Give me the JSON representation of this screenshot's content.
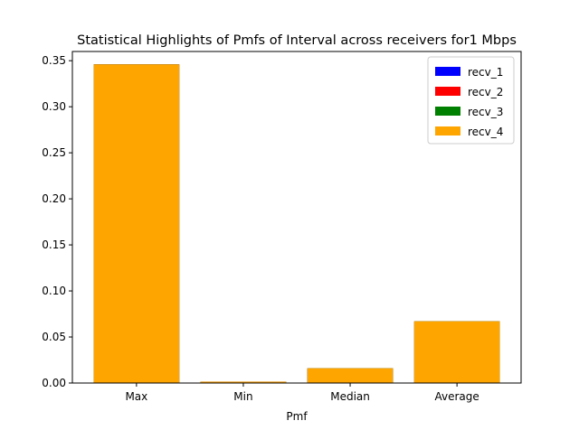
{
  "chart_data": {
    "type": "bar",
    "title": "Statistical Highlights of Pmfs of Interval across receivers for1 Mbps",
    "xlabel": "Pmf",
    "ylabel": "",
    "categories": [
      "Max",
      "Min",
      "Median",
      "Average"
    ],
    "ylim": [
      0,
      0.36
    ],
    "yticks": [
      "0.00",
      "0.05",
      "0.10",
      "0.15",
      "0.20",
      "0.25",
      "0.30",
      "0.35"
    ],
    "grid": false,
    "legend_position": "top-right",
    "series": [
      {
        "name": "recv_1",
        "color": "#0000ff",
        "values": [
          0.346,
          0.0015,
          0.016,
          0.067
        ]
      },
      {
        "name": "recv_2",
        "color": "#ff0000",
        "values": [
          0.346,
          0.0015,
          0.016,
          0.067
        ]
      },
      {
        "name": "recv_3",
        "color": "#008000",
        "values": [
          0.346,
          0.0015,
          0.016,
          0.067
        ]
      },
      {
        "name": "recv_4",
        "color": "#ffa500",
        "values": [
          0.346,
          0.0015,
          0.016,
          0.067
        ]
      }
    ]
  }
}
